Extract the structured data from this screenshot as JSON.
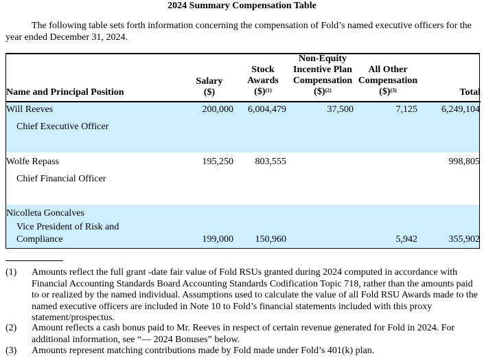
{
  "title": "2024 Summary Compensation Table",
  "intro": "The following table sets forth information concerning the compensation of Fold’s named executive officers for the year ended December 31, 2024.",
  "columns": [
    {
      "label": "Name and Principal Position"
    },
    {
      "label1": "Salary",
      "label2": "($)"
    },
    {
      "label1": "Stock",
      "label2": "Awards",
      "label3": "($)",
      "sup": "(1)"
    },
    {
      "label0": "Non-Equity",
      "label1": "Incentive Plan",
      "label2": "Compensation",
      "label3": "($)",
      "sup": "(2)"
    },
    {
      "label1": "All Other",
      "label2": "Compensation",
      "label3": "($)",
      "sup": "(3)"
    },
    {
      "label": "Total"
    }
  ],
  "rows": [
    {
      "name": "Will Reeves",
      "position": "Chief Executive Officer",
      "salary": "200,000",
      "stock": "6,004,479",
      "neip": "37,500",
      "other": "7,125",
      "total": "6,249,104"
    },
    {
      "name": "Wolfe Repass",
      "position": "Chief Financial Officer",
      "salary": "195,250",
      "stock": "803,555",
      "neip": "",
      "other": "",
      "total": "998,805"
    },
    {
      "name": "Nicolleta Goncalves",
      "position1": "Vice President of Risk and",
      "position2": "Compliance",
      "salary": "199,000",
      "stock": "150,960",
      "neip": "",
      "other": "5,942",
      "total": "355,902"
    }
  ],
  "footnotes": [
    {
      "mark": "(1)",
      "text": "Amounts reflect the full grant -date fair value of Fold RSUs granted during 2024 computed in accordance with Financial Accounting Standards Board Accounting Standards Codification Topic 718, rather than the amounts paid to or realized by the named individual. Assumptions used to calculate the value of all Fold RSU Awards made to the named executive officers are included in Note 10 to Fold’s financial statements included with this proxy statement/prospectus."
    },
    {
      "mark": "(2)",
      "text": "Amount reflects a cash bonus paid to Mr. Reeves in respect of certain revenue generated for Fold in 2024. For additional information, see “— 2024 Bonuses” below."
    },
    {
      "mark": "(3)",
      "text": "Amounts represent matching contributions made by Fold made under Fold’s 401(k) plan."
    }
  ],
  "colors": {
    "band": "#cdeefd"
  }
}
